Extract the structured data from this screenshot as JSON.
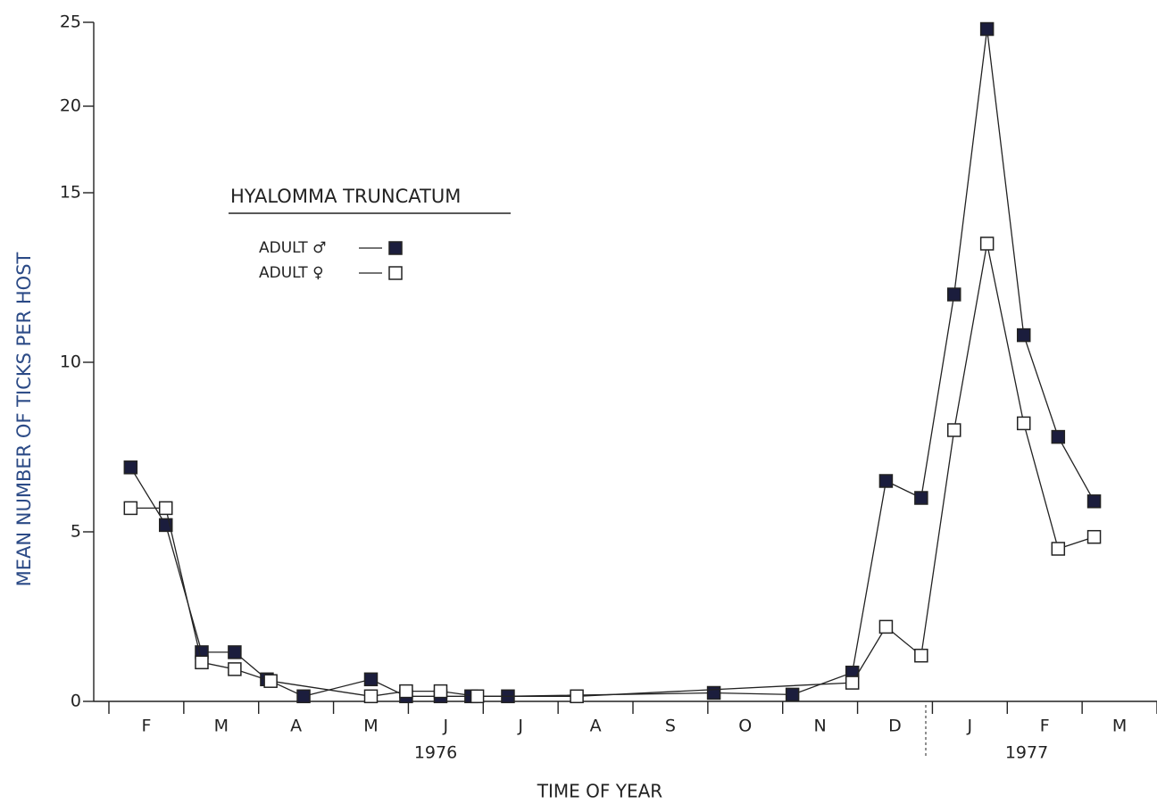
{
  "chart_data": {
    "type": "line",
    "y_label": "MEAN NUMBER OF TICKS PER HOST",
    "x_label": "TIME OF YEAR",
    "legend_title": "HYALOMMA  TRUNCATUM",
    "categories": [
      "F",
      "M",
      "A",
      "M",
      "J",
      "J",
      "A",
      "S",
      "O",
      "N",
      "D",
      "J",
      "F",
      "M"
    ],
    "year_labels": [
      "1976",
      "1977"
    ],
    "xlim": [
      0,
      14
    ],
    "ylim": [
      0,
      25
    ],
    "yticks": [
      0,
      5,
      10,
      15,
      20,
      25
    ],
    "series": [
      {
        "name": "ADULT ♂",
        "color": "#1b1d3d",
        "marker": "filled",
        "x": [
          0.29,
          0.76,
          1.24,
          1.68,
          2.11,
          2.6,
          3.5,
          3.97,
          4.43,
          4.84,
          5.33,
          8.08,
          9.13,
          9.93,
          10.38,
          10.85,
          11.29,
          11.73,
          12.22,
          12.68,
          13.16
        ],
        "values": [
          6.9,
          5.2,
          1.45,
          1.45,
          0.65,
          0.15,
          0.65,
          0.15,
          0.15,
          0.15,
          0.15,
          0.25,
          0.2,
          0.85,
          6.5,
          6.0,
          12.0,
          24.6,
          10.8,
          7.8,
          5.9
        ]
      },
      {
        "name": "ADULT ♀",
        "color": "#ffffff",
        "marker": "open",
        "x": [
          0.29,
          0.76,
          1.24,
          1.68,
          2.16,
          3.5,
          3.97,
          4.43,
          4.92,
          6.25,
          9.93,
          10.38,
          10.85,
          11.29,
          11.73,
          12.22,
          12.68,
          13.16
        ],
        "values": [
          5.7,
          5.7,
          1.15,
          0.95,
          0.6,
          0.15,
          0.3,
          0.3,
          0.15,
          0.15,
          0.55,
          2.2,
          1.35,
          8.0,
          13.5,
          8.2,
          4.5,
          4.85
        ]
      }
    ]
  }
}
